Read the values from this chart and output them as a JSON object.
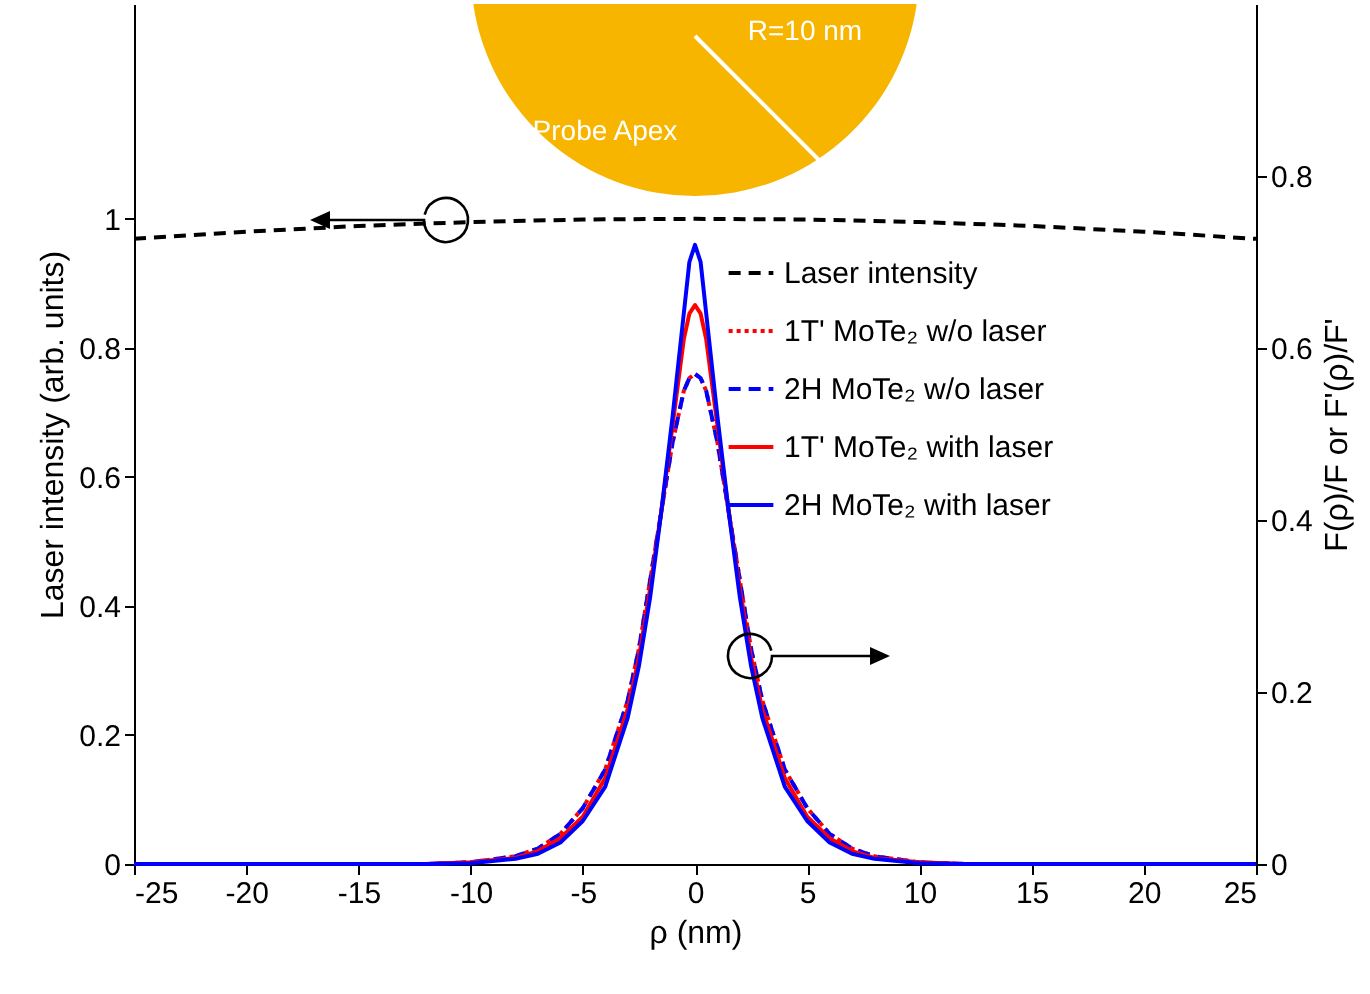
{
  "chart_data": {
    "type": "line",
    "xlabel": "ρ (nm)",
    "ylabel": "Laser intensity (arb. units)",
    "y2label": "F(ρ)/F or F'(ρ)/F'",
    "annotations": [
      "Probe Apex",
      "R=10 nm"
    ],
    "xlim": [
      -25,
      25
    ],
    "xticks": [
      -25,
      -20,
      -15,
      -10,
      -5,
      0,
      5,
      10,
      15,
      20,
      25
    ],
    "ylim": [
      0,
      1.333
    ],
    "yticks": [
      {
        "value": 0,
        "label": "0"
      },
      0.2,
      0.4,
      0.6,
      0.8,
      {
        "value": 1,
        "label": "1"
      }
    ],
    "y2lim": [
      0,
      1
    ],
    "y2ticks": [
      {
        "value": 0,
        "label": "0"
      },
      0.2,
      0.4,
      0.6,
      0.8
    ],
    "legend": "top right",
    "x": [
      -25,
      -12,
      -10,
      -8,
      -7,
      -6,
      -5,
      -4,
      -3,
      -2.5,
      -2,
      -1.5,
      -1,
      -0.5,
      -0.25,
      0,
      0.25,
      0.5,
      1,
      1.5,
      2,
      2.5,
      3,
      4,
      5,
      6,
      7,
      8,
      10,
      12,
      25
    ],
    "series": [
      {
        "name": "Laser intensity",
        "color": "#000000",
        "line_style": "dashed",
        "x": [
          -25,
          -20,
          -15,
          -10,
          -5,
          0,
          5,
          10,
          15,
          20,
          25
        ],
        "values": [
          0.969,
          0.98,
          0.989,
          0.995,
          0.999,
          1.0,
          0.999,
          0.995,
          0.989,
          0.98,
          0.969
        ]
      },
      {
        "name": "1T' MoTe₂ w/o laser",
        "color": "#ff0000",
        "line_style": "dotted",
        "axis": "y2",
        "values": [
          0,
          0,
          0.002,
          0.009,
          0.018,
          0.035,
          0.065,
          0.11,
          0.19,
          0.25,
          0.33,
          0.41,
          0.49,
          0.55,
          0.565,
          0.57,
          0.565,
          0.55,
          0.49,
          0.41,
          0.33,
          0.25,
          0.19,
          0.11,
          0.065,
          0.035,
          0.018,
          0.009,
          0.002,
          0,
          0
        ]
      },
      {
        "name": "2H MoTe₂ w/o laser",
        "color": "#0000ff",
        "line_style": "dashed",
        "axis": "y2",
        "values": [
          0,
          0,
          0.002,
          0.009,
          0.018,
          0.035,
          0.065,
          0.11,
          0.19,
          0.25,
          0.33,
          0.41,
          0.49,
          0.55,
          0.565,
          0.57,
          0.565,
          0.55,
          0.49,
          0.41,
          0.33,
          0.25,
          0.19,
          0.11,
          0.065,
          0.035,
          0.018,
          0.009,
          0.002,
          0,
          0
        ]
      },
      {
        "name": "1T' MoTe₂ with laser",
        "color": "#ff0000",
        "line_style": "solid",
        "axis": "y2",
        "values": [
          0,
          0,
          0.002,
          0.007,
          0.015,
          0.03,
          0.055,
          0.1,
          0.18,
          0.24,
          0.32,
          0.41,
          0.51,
          0.61,
          0.64,
          0.65,
          0.64,
          0.61,
          0.51,
          0.41,
          0.32,
          0.24,
          0.18,
          0.1,
          0.055,
          0.03,
          0.015,
          0.007,
          0.002,
          0,
          0
        ]
      },
      {
        "name": "2H MoTe₂ with laser",
        "color": "#0000ff",
        "line_style": "solid",
        "axis": "y2",
        "values": [
          0,
          0,
          0.001,
          0.006,
          0.012,
          0.025,
          0.05,
          0.09,
          0.17,
          0.23,
          0.31,
          0.41,
          0.52,
          0.64,
          0.7,
          0.72,
          0.7,
          0.64,
          0.52,
          0.41,
          0.31,
          0.23,
          0.17,
          0.09,
          0.05,
          0.025,
          0.012,
          0.006,
          0.001,
          0,
          0
        ]
      }
    ]
  }
}
